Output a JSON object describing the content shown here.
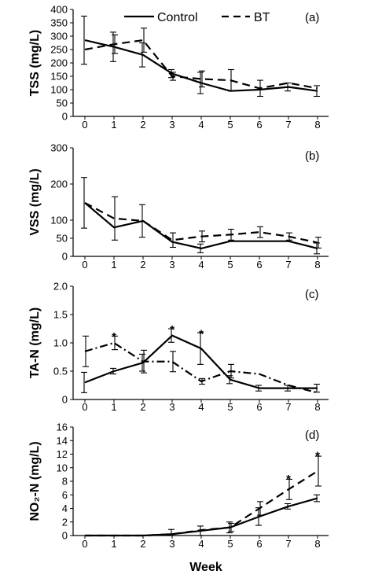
{
  "legend": {
    "entries": [
      "Control",
      "BT"
    ]
  },
  "xlabel": "Week",
  "chart_data": [
    {
      "type": "line",
      "panel_label": "(a)",
      "ylabel": "TSS (mg/L)",
      "ylim": [
        0,
        400
      ],
      "yticks": [
        "0",
        "50",
        "100",
        "150",
        "200",
        "250",
        "300",
        "350",
        "400"
      ],
      "categories": [
        "0",
        "1",
        "2",
        "3",
        "4",
        "5",
        "6",
        "7",
        "8"
      ],
      "series": [
        {
          "name": "Control",
          "style": "solid",
          "values": [
            285,
            260,
            230,
            160,
            125,
            95,
            100,
            110,
            95
          ],
          "errors": [
            90,
            55,
            45,
            15,
            40,
            0,
            0,
            15,
            20
          ]
        },
        {
          "name": "BT",
          "style": "dashed",
          "values": [
            250,
            270,
            285,
            150,
            140,
            135,
            105,
            125,
            105
          ],
          "errors": [
            0,
            35,
            45,
            15,
            30,
            40,
            30,
            0,
            0
          ]
        }
      ],
      "markers": []
    },
    {
      "type": "line",
      "panel_label": "(b)",
      "ylabel": "VSS (mg/L)",
      "ylim": [
        0,
        300
      ],
      "yticks": [
        "0",
        "50",
        "100",
        "200",
        "300"
      ],
      "categories": [
        "0",
        "1",
        "2",
        "3",
        "4",
        "5",
        "6",
        "7",
        "8"
      ],
      "series": [
        {
          "name": "Control",
          "style": "solid",
          "values": [
            148,
            80,
            98,
            40,
            22,
            42,
            42,
            42,
            22
          ],
          "errors": [
            70,
            0,
            45,
            0,
            12,
            0,
            0,
            0,
            15
          ]
        },
        {
          "name": "BT",
          "style": "dashed",
          "values": [
            148,
            105,
            98,
            45,
            55,
            60,
            67,
            55,
            38
          ],
          "errors": [
            0,
            60,
            0,
            20,
            15,
            15,
            15,
            10,
            15
          ]
        }
      ],
      "markers": []
    },
    {
      "type": "line",
      "panel_label": "(c)",
      "ylabel": "TA-N (mg/L)",
      "ylim": [
        0,
        2.0
      ],
      "yticks": [
        "0",
        "0.5",
        "1.0",
        "1.5",
        "2.0"
      ],
      "categories": [
        "0",
        "1",
        "2",
        "3",
        "4",
        "5",
        "6",
        "7",
        "8"
      ],
      "series": [
        {
          "name": "Control",
          "style": "solid",
          "values": [
            0.3,
            0.5,
            0.65,
            1.13,
            0.9,
            0.35,
            0.2,
            0.2,
            0.2
          ],
          "errors": [
            0.18,
            0.05,
            0.15,
            0.12,
            0.28,
            0.07,
            0.05,
            0.05,
            0.07
          ]
        },
        {
          "name": "BT",
          "style": "dashdot",
          "values": [
            0.85,
            1.0,
            0.67,
            0.67,
            0.32,
            0.5,
            0.45,
            0.25,
            0.12
          ],
          "errors": [
            0.27,
            0.12,
            0.2,
            0.18,
            0.05,
            0.12,
            0.0,
            0.0,
            0.0
          ]
        }
      ],
      "markers": [
        {
          "x": "1",
          "y": 1.15,
          "text": "*"
        },
        {
          "x": "3",
          "y": 1.28,
          "text": "*"
        },
        {
          "x": "4",
          "y": 1.2,
          "text": "*"
        }
      ]
    },
    {
      "type": "line",
      "panel_label": "(d)",
      "ylabel": "NO₂-N (mg/L)",
      "ylim": [
        0,
        16
      ],
      "yticks": [
        "0",
        "2",
        "4",
        "6",
        "8",
        "10",
        "12",
        "14",
        "16"
      ],
      "categories": [
        "0",
        "1",
        "2",
        "3",
        "4",
        "5",
        "6",
        "7",
        "8"
      ],
      "series": [
        {
          "name": "Control",
          "style": "solid",
          "values": [
            0,
            0,
            0,
            0.2,
            0.7,
            1.2,
            2.8,
            4.3,
            5.5
          ],
          "errors": [
            0,
            0,
            0,
            0.7,
            0.7,
            0.8,
            1.3,
            0.4,
            0.5
          ]
        },
        {
          "name": "BT",
          "style": "dashed",
          "values": [
            0,
            0,
            0,
            0.2,
            0.8,
            1.2,
            4.0,
            6.8,
            9.5
          ],
          "errors": [
            0,
            0,
            0,
            0,
            0,
            0.6,
            1.0,
            1.5,
            2.2
          ]
        }
      ],
      "markers": [
        {
          "x": "7",
          "y": 8.7,
          "text": "*"
        },
        {
          "x": "8",
          "y": 12.1,
          "text": "*"
        }
      ]
    }
  ]
}
